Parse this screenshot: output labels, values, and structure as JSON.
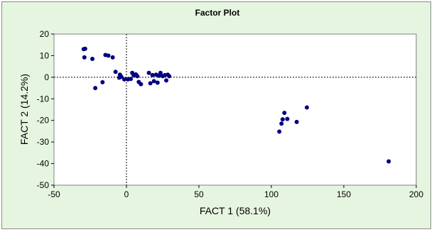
{
  "chart_data": {
    "type": "scatter",
    "title": "Factor Plot",
    "xlabel": "FACT 1 (58.1%)",
    "ylabel": "FACT 2 (14.2%)",
    "xlim": [
      -50,
      200
    ],
    "ylim": [
      -50,
      20
    ],
    "xticks": [
      -50,
      0,
      50,
      100,
      150,
      200
    ],
    "yticks": [
      20,
      10,
      0,
      -10,
      -20,
      -30,
      -40,
      -50
    ],
    "grid": false,
    "legend": "none",
    "colors": {
      "marker": "#000080",
      "plot_bg": "#ffffff",
      "chart_bg": "#e6f5e0",
      "zero_line": "#000000"
    },
    "points": [
      {
        "x": -29.5,
        "y": 13.0
      },
      {
        "x": -28.5,
        "y": 13.2
      },
      {
        "x": -29.0,
        "y": 9.2
      },
      {
        "x": -23.5,
        "y": 8.5
      },
      {
        "x": -14.5,
        "y": 10.3
      },
      {
        "x": -12.5,
        "y": 10.0
      },
      {
        "x": -9.5,
        "y": 9.2
      },
      {
        "x": -21.5,
        "y": -5.0
      },
      {
        "x": -16.5,
        "y": -2.3
      },
      {
        "x": -7.5,
        "y": 2.5
      },
      {
        "x": -4.5,
        "y": 1.2
      },
      {
        "x": -5.0,
        "y": -0.2
      },
      {
        "x": -3.5,
        "y": 0.2
      },
      {
        "x": -1.5,
        "y": -1.0
      },
      {
        "x": 1.0,
        "y": -1.0
      },
      {
        "x": 3.0,
        "y": -0.8
      },
      {
        "x": 4.0,
        "y": 2.0
      },
      {
        "x": 5.0,
        "y": 0.8
      },
      {
        "x": 6.5,
        "y": 1.3
      },
      {
        "x": 7.5,
        "y": 0.5
      },
      {
        "x": 8.5,
        "y": -2.2
      },
      {
        "x": 10.0,
        "y": -3.2
      },
      {
        "x": 15.5,
        "y": 2.0
      },
      {
        "x": 16.5,
        "y": -2.8
      },
      {
        "x": 18.0,
        "y": 1.0
      },
      {
        "x": 19.0,
        "y": -1.8
      },
      {
        "x": 20.5,
        "y": 1.2
      },
      {
        "x": 21.5,
        "y": -2.5
      },
      {
        "x": 22.5,
        "y": 0.7
      },
      {
        "x": 23.5,
        "y": 2.0
      },
      {
        "x": 25.0,
        "y": 0.5
      },
      {
        "x": 26.5,
        "y": 1.0
      },
      {
        "x": 27.5,
        "y": -1.5
      },
      {
        "x": 28.5,
        "y": 1.2
      },
      {
        "x": 29.5,
        "y": 0.5
      },
      {
        "x": 105.5,
        "y": -25.2
      },
      {
        "x": 107.0,
        "y": -21.5
      },
      {
        "x": 107.8,
        "y": -19.5
      },
      {
        "x": 109.0,
        "y": -16.5
      },
      {
        "x": 111.0,
        "y": -19.3
      },
      {
        "x": 117.5,
        "y": -20.7
      },
      {
        "x": 124.5,
        "y": -14.0
      },
      {
        "x": 181.0,
        "y": -39.0
      }
    ]
  }
}
